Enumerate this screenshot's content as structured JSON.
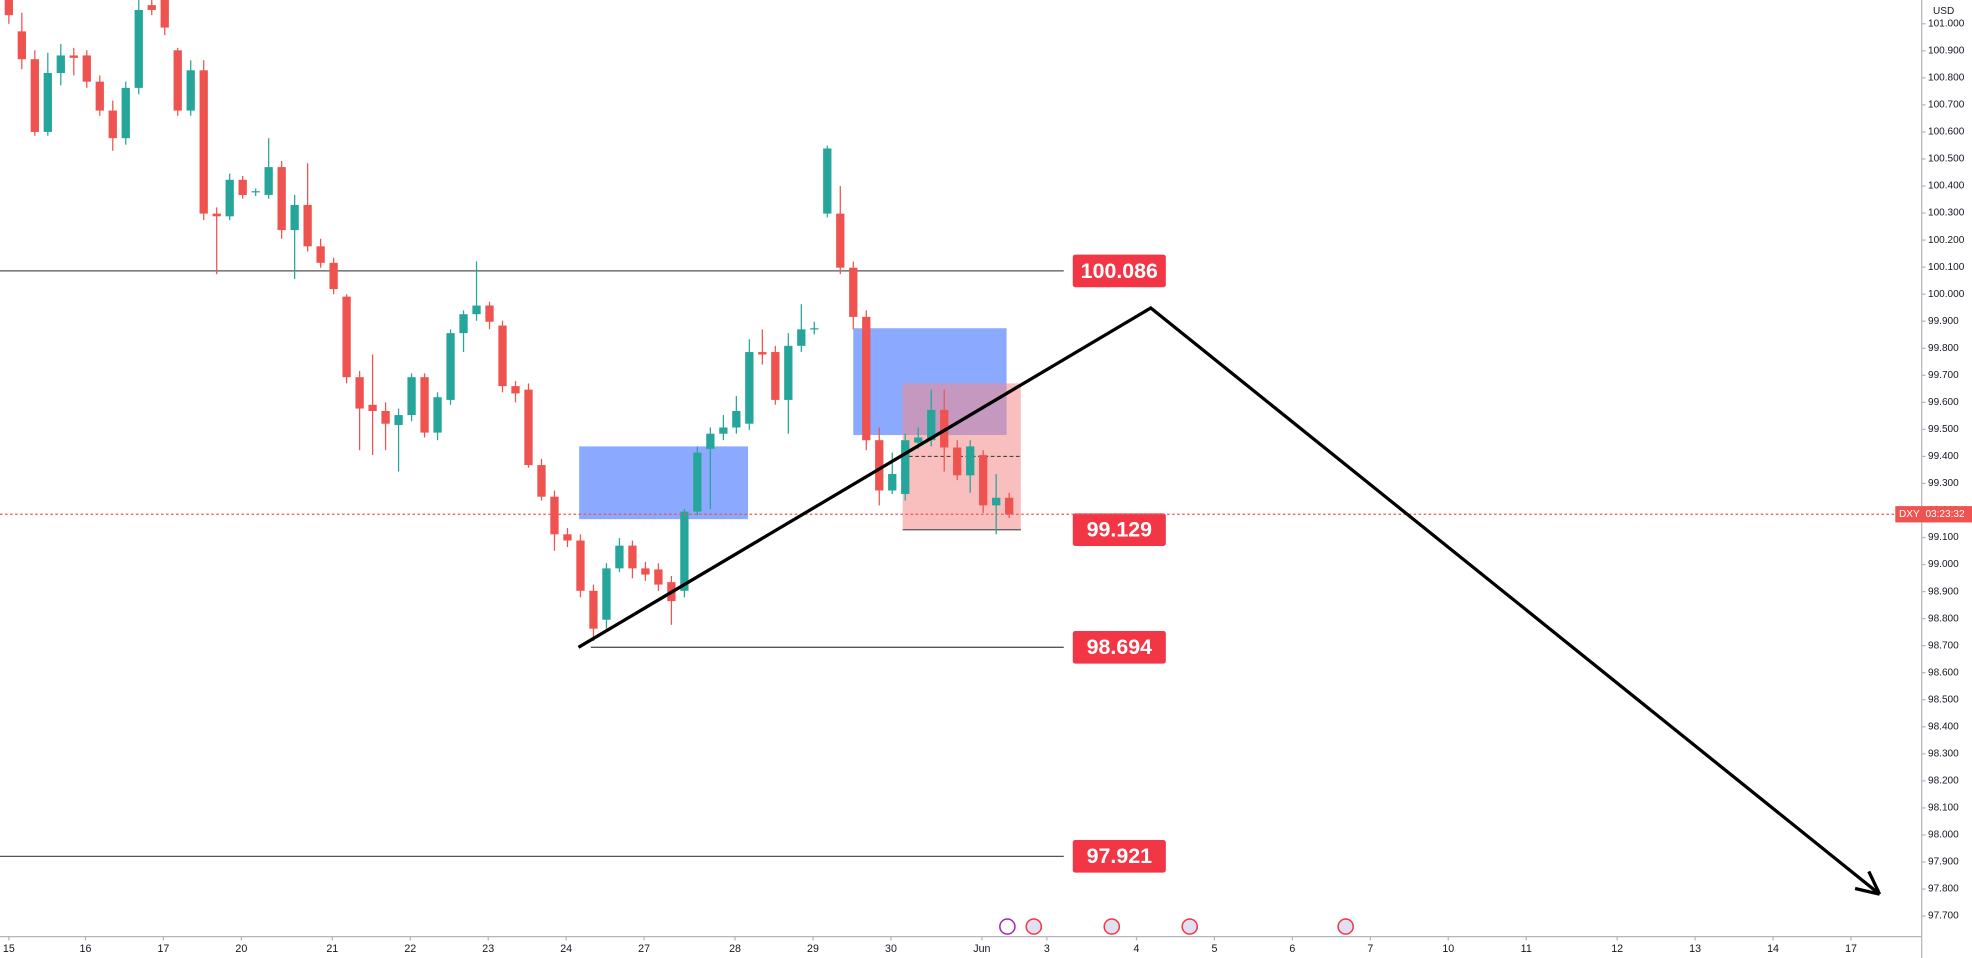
{
  "chart_data": {
    "type": "candlestick",
    "symbol": "DXY",
    "currency": "USD",
    "countdown": "03:23:32",
    "up_color": "#26a69a",
    "down_color": "#ef5350",
    "open": [
      101.088,
      100.972,
      100.869,
      100.6,
      100.818,
      100.883,
      100.883,
      100.786,
      100.679,
      100.577,
      100.763,
      101.069,
      101.088,
      100.902,
      100.679,
      100.828,
      100.298,
      100.288,
      100.423,
      100.377,
      100.367,
      100.47,
      100.237,
      100.33,
      100.177,
      100.116,
      99.991,
      99.693,
      99.591,
      99.568,
      99.516,
      99.553,
      99.693,
      99.488,
      99.609,
      99.856,
      99.926,
      99.958,
      99.884,
      99.66,
      99.647,
      99.368,
      99.251,
      99.112,
      99.089,
      98.903,
      98.796,
      98.986,
      99.07,
      98.986,
      98.982,
      98.935,
      98.903,
      99.196,
      99.428,
      99.484,
      99.507,
      99.521,
      99.786,
      99.786,
      99.609,
      99.809,
      99.87,
      100.298,
      100.298,
      100.098,
      99.916,
      99.46,
      99.274,
      99.261,
      99.451,
      99.46,
      99.572,
      99.433,
      99.33,
      99.405,
      99.219,
      99.247
    ],
    "high": [
      101.088,
      101.041,
      100.902,
      100.893,
      100.925,
      100.911,
      100.902,
      100.809,
      100.716,
      100.786,
      101.088,
      101.088,
      101.088,
      100.911,
      100.865,
      100.865,
      100.321,
      100.446,
      100.437,
      100.391,
      100.577,
      100.493,
      100.367,
      100.484,
      100.205,
      100.135,
      100.0,
      99.716,
      99.777,
      99.6,
      99.577,
      99.707,
      99.707,
      99.637,
      99.87,
      99.94,
      100.121,
      99.972,
      99.902,
      99.679,
      99.67,
      99.391,
      99.274,
      99.135,
      99.112,
      98.926,
      99.005,
      99.098,
      99.089,
      99.01,
      99.005,
      98.958,
      99.205,
      99.437,
      99.507,
      99.553,
      99.623,
      99.833,
      99.87,
      99.809,
      99.856,
      99.963,
      99.898,
      100.549,
      100.4,
      100.121,
      99.94,
      99.507,
      99.414,
      99.484,
      99.507,
      99.647,
      99.647,
      99.46,
      99.46,
      99.423,
      99.335,
      99.265
    ],
    "low": [
      101.0,
      100.832,
      100.586,
      100.586,
      100.772,
      100.809,
      100.763,
      100.66,
      100.53,
      100.553,
      100.739,
      101.032,
      100.958,
      100.66,
      100.66,
      100.274,
      100.074,
      100.274,
      100.353,
      100.363,
      100.353,
      100.205,
      100.056,
      100.158,
      100.098,
      100.0,
      99.67,
      99.423,
      99.405,
      99.423,
      99.344,
      99.53,
      99.47,
      99.46,
      99.591,
      99.786,
      99.902,
      99.87,
      99.637,
      99.6,
      99.358,
      99.237,
      99.051,
      99.065,
      98.879,
      98.717,
      98.763,
      98.972,
      98.949,
      98.94,
      98.903,
      98.777,
      98.879,
      99.182,
      99.205,
      99.46,
      99.484,
      99.498,
      99.74,
      99.591,
      99.484,
      99.786,
      99.851,
      100.284,
      100.074,
      99.87,
      99.423,
      99.219,
      99.261,
      99.237,
      99.428,
      99.437,
      99.344,
      99.312,
      99.265,
      99.191,
      99.112,
      99.172
    ],
    "close": [
      101.032,
      100.869,
      100.6,
      100.818,
      100.883,
      100.874,
      100.786,
      100.679,
      100.577,
      100.763,
      101.051,
      101.051,
      100.986,
      100.679,
      100.828,
      100.298,
      100.288,
      100.423,
      100.367,
      100.381,
      100.47,
      100.237,
      100.33,
      100.177,
      100.116,
      100.019,
      99.693,
      99.577,
      99.568,
      99.521,
      99.553,
      99.693,
      99.488,
      99.619,
      99.856,
      99.926,
      99.958,
      99.898,
      99.66,
      99.633,
      99.368,
      99.251,
      99.112,
      99.089,
      98.903,
      98.763,
      98.986,
      99.07,
      98.986,
      98.963,
      98.926,
      98.865,
      99.196,
      99.414,
      99.484,
      99.507,
      99.568,
      99.786,
      99.777,
      99.609,
      99.809,
      99.87,
      99.874,
      100.539,
      100.098,
      99.916,
      99.46,
      99.274,
      99.335,
      99.46,
      99.47,
      99.572,
      99.433,
      99.33,
      99.437,
      99.219,
      99.247,
      99.186
    ],
    "xlim": [
      -0.68,
      147.24
    ],
    "xticks": [
      {
        "value": 0,
        "label": "15"
      },
      {
        "value": 5.9,
        "label": "16"
      },
      {
        "value": 11.9,
        "label": "17"
      },
      {
        "value": 17.9,
        "label": "20"
      },
      {
        "value": 24.9,
        "label": "21"
      },
      {
        "value": 30.9,
        "label": "22"
      },
      {
        "value": 36.9,
        "label": "23"
      },
      {
        "value": 42.9,
        "label": "24"
      },
      {
        "value": 48.9,
        "label": "27"
      },
      {
        "value": 55.9,
        "label": "28"
      },
      {
        "value": 61.9,
        "label": "29"
      },
      {
        "value": 67.9,
        "label": "30"
      },
      {
        "value": 74.9,
        "label": "Jun"
      },
      {
        "value": 79.9,
        "label": "3"
      },
      {
        "value": 86.8,
        "label": "4"
      },
      {
        "value": 92.8,
        "label": "5"
      },
      {
        "value": 98.8,
        "label": "6"
      },
      {
        "value": 104.8,
        "label": "7"
      },
      {
        "value": 110.8,
        "label": "10"
      },
      {
        "value": 116.8,
        "label": "11"
      },
      {
        "value": 123.8,
        "label": "12"
      },
      {
        "value": 129.8,
        "label": "13"
      },
      {
        "value": 135.8,
        "label": "14"
      },
      {
        "value": 141.8,
        "label": "17"
      }
    ],
    "ylim": [
      97.624,
      101.088
    ],
    "yticks": [
      {
        "value": 97.7,
        "label": "97.700"
      },
      {
        "value": 97.8,
        "label": "97.800"
      },
      {
        "value": 97.9,
        "label": "97.900"
      },
      {
        "value": 98.0,
        "label": "98.000"
      },
      {
        "value": 98.1,
        "label": "98.100"
      },
      {
        "value": 98.2,
        "label": "98.200"
      },
      {
        "value": 98.3,
        "label": "98.300"
      },
      {
        "value": 98.4,
        "label": "98.400"
      },
      {
        "value": 98.5,
        "label": "98.500"
      },
      {
        "value": 98.6,
        "label": "98.600"
      },
      {
        "value": 98.7,
        "label": "98.700"
      },
      {
        "value": 98.8,
        "label": "98.800"
      },
      {
        "value": 98.9,
        "label": "98.900"
      },
      {
        "value": 99.0,
        "label": "99.000"
      },
      {
        "value": 99.1,
        "label": "99.100"
      },
      {
        "value": 99.2,
        "label": "99.200"
      },
      {
        "value": 99.3,
        "label": "99.300"
      },
      {
        "value": 99.4,
        "label": "99.400"
      },
      {
        "value": 99.5,
        "label": "99.500"
      },
      {
        "value": 99.6,
        "label": "99.600"
      },
      {
        "value": 99.7,
        "label": "99.700"
      },
      {
        "value": 99.8,
        "label": "99.800"
      },
      {
        "value": 99.9,
        "label": "99.900"
      },
      {
        "value": 100.0,
        "label": "100.000"
      },
      {
        "value": 100.1,
        "label": "100.100"
      },
      {
        "value": 100.2,
        "label": "100.200"
      },
      {
        "value": 100.3,
        "label": "100.300"
      },
      {
        "value": 100.4,
        "label": "100.400"
      },
      {
        "value": 100.5,
        "label": "100.500"
      },
      {
        "value": 100.6,
        "label": "100.600"
      },
      {
        "value": 100.7,
        "label": "100.700"
      },
      {
        "value": 100.8,
        "label": "100.800"
      },
      {
        "value": 100.9,
        "label": "100.900"
      },
      {
        "value": 101.0,
        "label": "101.000"
      }
    ],
    "levels": [
      {
        "value": 100.086,
        "from": -0.68,
        "to": 81.2
      },
      {
        "value": 99.129,
        "from": 68.8,
        "to": 77.9
      },
      {
        "value": 98.694,
        "from": 44.8,
        "to": 81.2
      },
      {
        "value": 97.921,
        "from": -0.68,
        "to": 81.2
      }
    ],
    "level_color": "#f23645",
    "zones": [
      {
        "x0": 43.9,
        "x1": 56.9,
        "top": 99.437,
        "bottom": 99.168,
        "color": "#2962ff"
      },
      {
        "x0": 65.0,
        "x1": 76.8,
        "top": 99.874,
        "bottom": 99.479,
        "color": "#2962ff"
      },
      {
        "x0": 68.8,
        "x1": 77.9,
        "top": 99.67,
        "bottom": 99.129,
        "color": "#f48a8a"
      }
    ],
    "midline": 99.4,
    "path": {
      "x": [
        43.85,
        87.9,
        144.0
      ],
      "y": [
        98.694,
        99.949,
        97.781
      ]
    }
  }
}
